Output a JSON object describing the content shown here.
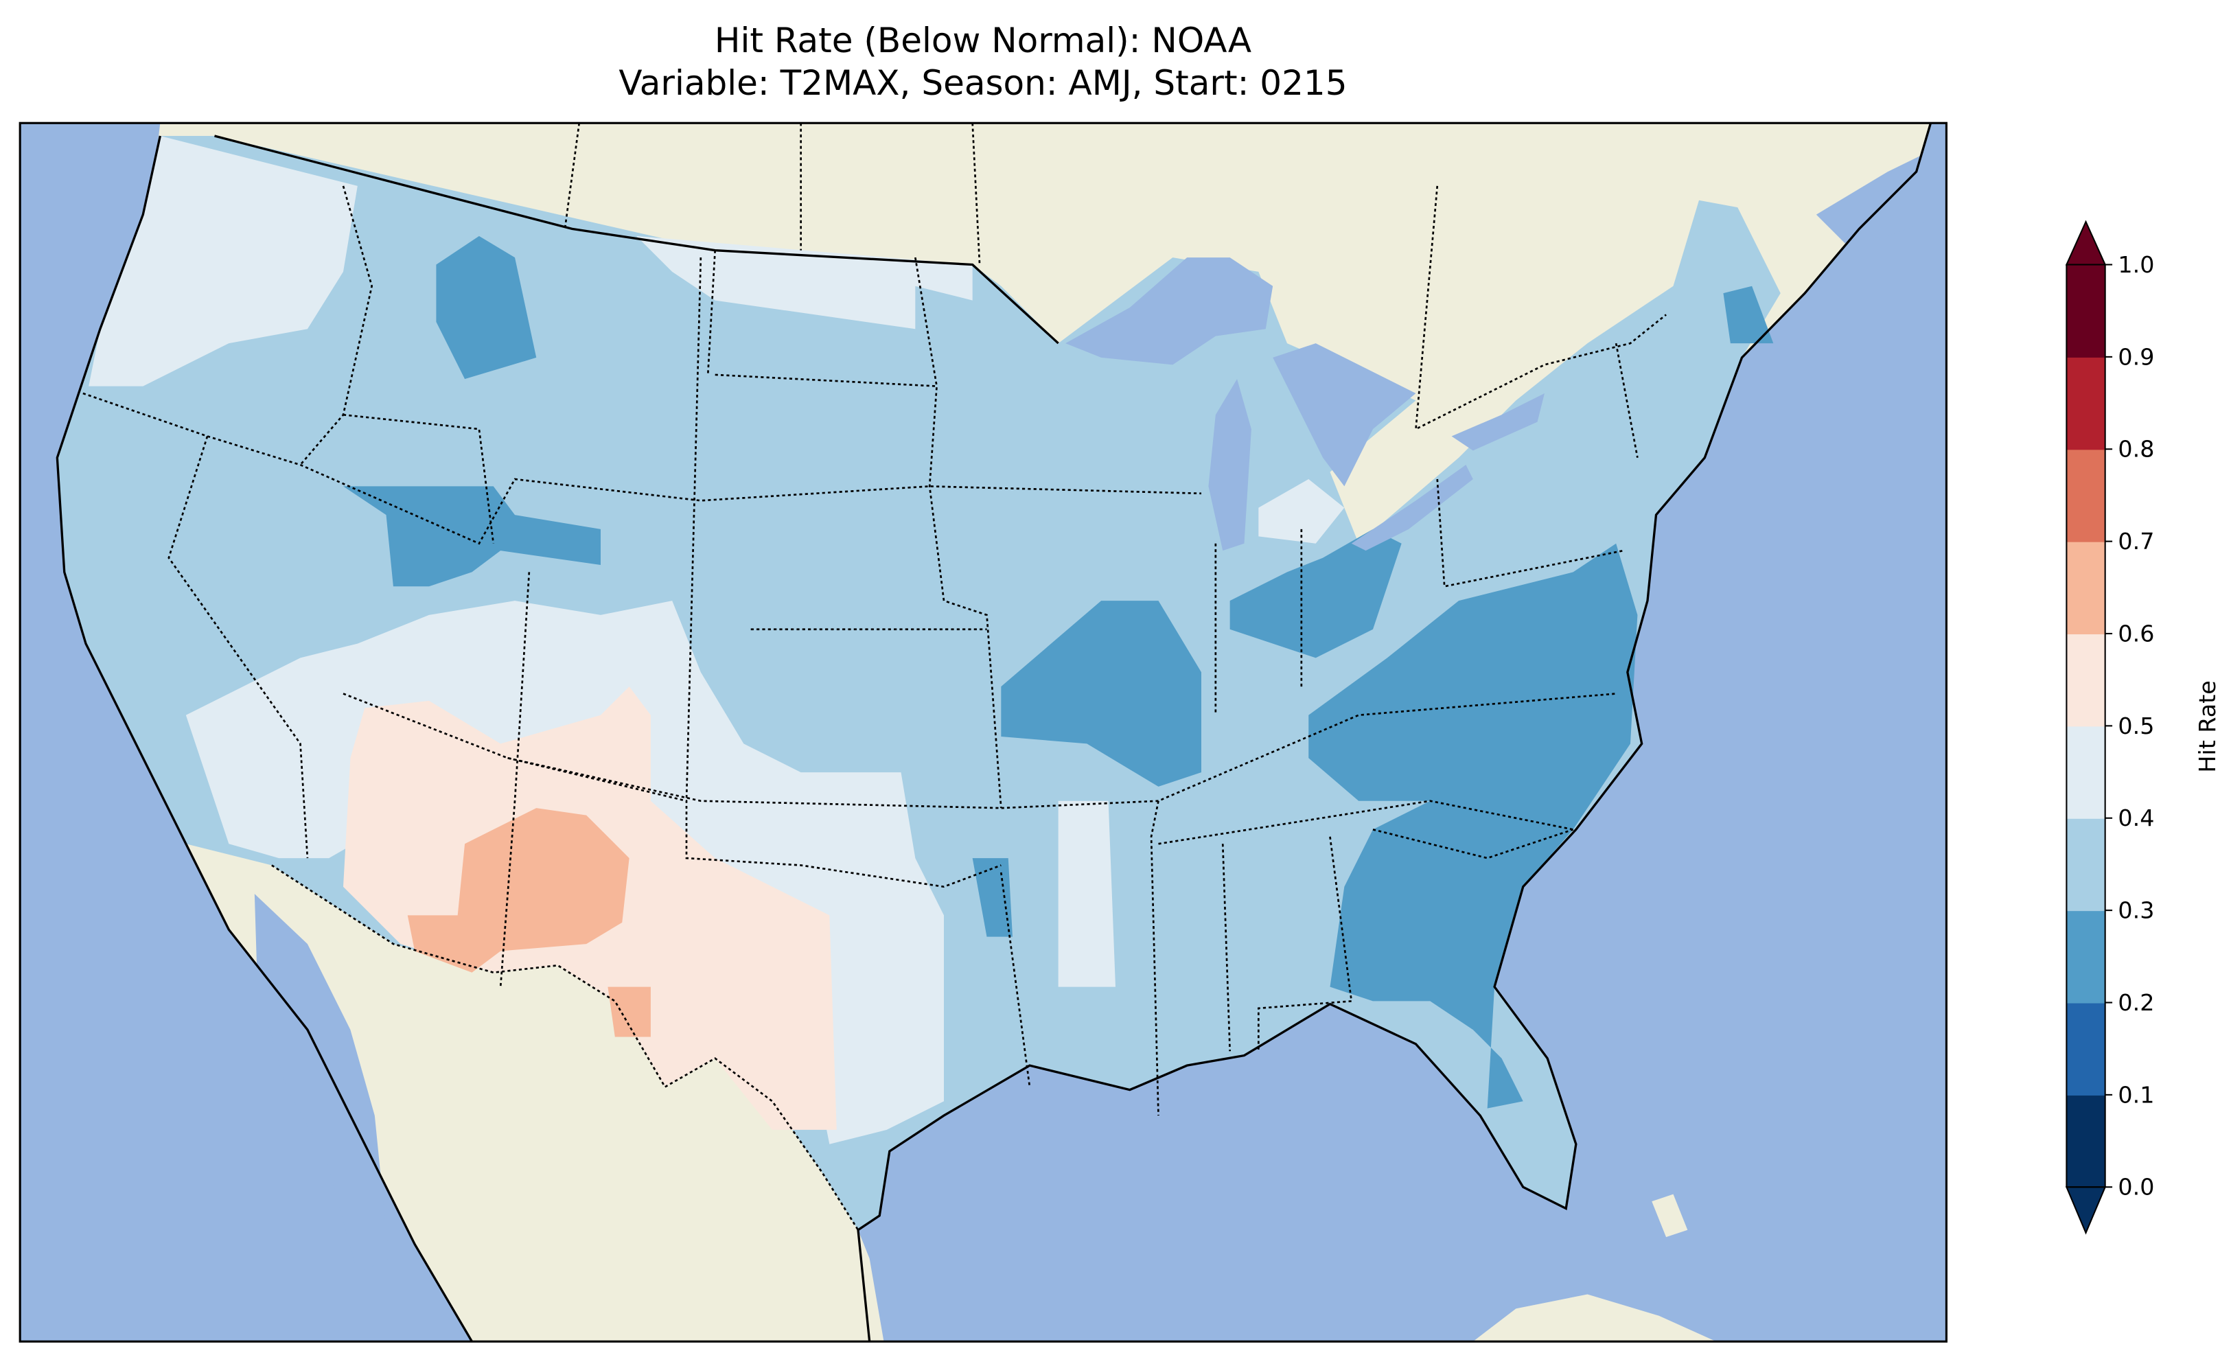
{
  "title": {
    "line1": "Hit Rate (Below Normal): NOAA",
    "line2": "Variable: T2MAX, Season: AMJ, Start: 0215"
  },
  "map": {
    "ocean_color": "#97b6e1",
    "land_color": "#efeedc",
    "lake_color": "#97b6e1"
  },
  "colorbar": {
    "label": "Hit Rate",
    "ticks": [
      "0.0",
      "0.1",
      "0.2",
      "0.3",
      "0.4",
      "0.5",
      "0.6",
      "0.7",
      "0.8",
      "0.9",
      "1.0"
    ],
    "levels": [
      0,
      0.1,
      0.2,
      0.3,
      0.4,
      0.5,
      0.6,
      0.7,
      0.8,
      0.9,
      1.0
    ],
    "colors": [
      "#053061",
      "#2366ac",
      "#529dc8",
      "#a8cfe4",
      "#e1ecf3",
      "#fae7dd",
      "#f6b799",
      "#de725a",
      "#b2212e",
      "#67001f"
    ],
    "extend": "both"
  }
}
